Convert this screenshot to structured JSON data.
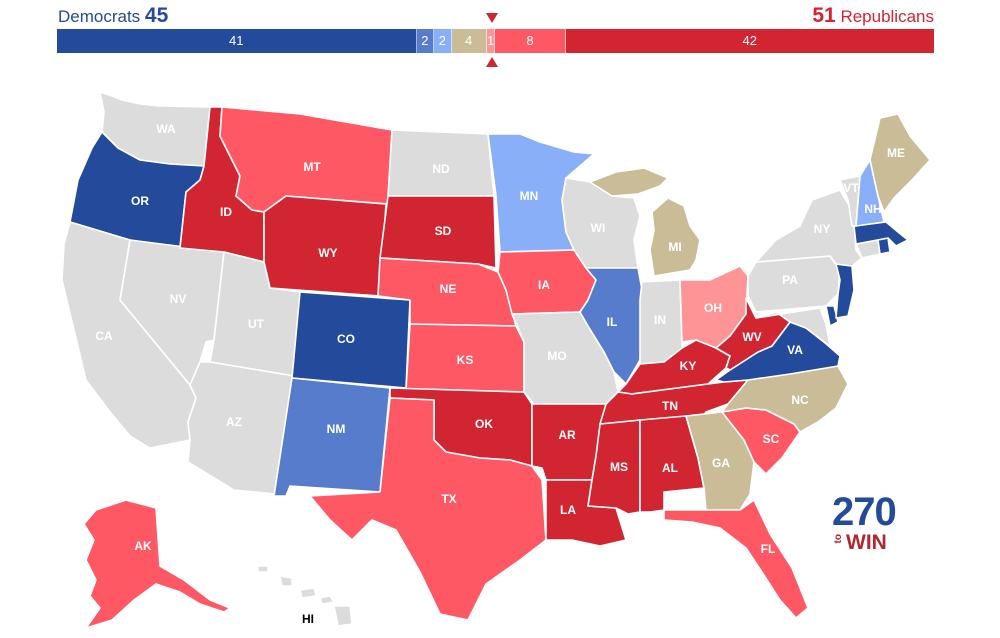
{
  "header": {
    "dem_label": "Democrats",
    "dem_total": "45",
    "rep_total": "51",
    "rep_label": "Republicans"
  },
  "bar": [
    {
      "value": 41,
      "label": "41",
      "color": "#234a9b"
    },
    {
      "value": 2,
      "label": "2",
      "color": "#577ccc"
    },
    {
      "value": 2,
      "label": "2",
      "color": "#8aaff9"
    },
    {
      "value": 4,
      "label": "4",
      "color": "#c9bc97"
    },
    {
      "value": 1,
      "label": "1",
      "color": "#ff9496"
    },
    {
      "value": 8,
      "label": "8",
      "color": "#ff5865"
    },
    {
      "value": 42,
      "label": "42",
      "color": "#d22532"
    }
  ],
  "colors": {
    "safe_dem": "#234a9b",
    "likely_dem": "#577ccc",
    "lean_dem": "#8aaff9",
    "tossup": "#c9bc97",
    "lean_rep": "#ff9496",
    "likely_rep": "#ff5865",
    "safe_rep": "#d22532",
    "no_race": "#dcdcdc"
  },
  "states": {
    "WA": "no_race",
    "OR": "safe_dem",
    "CA": "no_race",
    "NV": "no_race",
    "ID": "safe_rep",
    "MT": "likely_rep",
    "WY": "safe_rep",
    "UT": "no_race",
    "AZ": "no_race",
    "CO": "safe_dem",
    "NM": "likely_dem",
    "ND": "no_race",
    "SD": "safe_rep",
    "NE": "likely_rep",
    "KS": "likely_rep",
    "OK": "safe_rep",
    "TX": "likely_rep",
    "MN": "lean_dem",
    "IA": "likely_rep",
    "MO": "no_race",
    "AR": "safe_rep",
    "LA": "safe_rep",
    "WI": "no_race",
    "IL": "likely_dem",
    "MI": "tossup",
    "IN": "no_race",
    "OH": "lean_rep",
    "KY": "safe_rep",
    "TN": "safe_rep",
    "MS": "safe_rep",
    "AL": "safe_rep",
    "GA": "tossup",
    "FL": "likely_rep",
    "SC": "likely_rep",
    "NC": "tossup",
    "VA": "safe_dem",
    "WV": "safe_rep",
    "PA": "no_race",
    "NY": "no_race",
    "VT": "no_race",
    "NH": "lean_dem",
    "ME": "tossup",
    "MA": "safe_dem",
    "RI": "safe_dem",
    "CT": "no_race",
    "NJ": "safe_dem",
    "DE": "safe_dem",
    "MD": "no_race",
    "AK": "likely_rep",
    "HI": "no_race"
  },
  "labels": {
    "WA": "WA",
    "OR": "OR",
    "CA": "CA",
    "NV": "NV",
    "ID": "ID",
    "MT": "MT",
    "WY": "WY",
    "UT": "UT",
    "AZ": "AZ",
    "CO": "CO",
    "NM": "NM",
    "ND": "ND",
    "SD": "SD",
    "NE": "NE",
    "KS": "KS",
    "OK": "OK",
    "TX": "TX",
    "MN": "MN",
    "IA": "IA",
    "MO": "MO",
    "AR": "AR",
    "LA": "LA",
    "WI": "WI",
    "IL": "IL",
    "MI": "MI",
    "IN": "IN",
    "OH": "OH",
    "KY": "KY",
    "TN": "TN",
    "MS": "MS",
    "AL": "AL",
    "GA": "GA",
    "FL": "FL",
    "SC": "SC",
    "NC": "NC",
    "VA": "VA",
    "WV": "WV",
    "PA": "PA",
    "NY": "NY",
    "VT": "VT",
    "NH": "NH",
    "ME": "ME",
    "AK": "AK",
    "HI": "HI"
  },
  "logo": {
    "number": "270",
    "to": "to",
    "win": "WIN"
  }
}
